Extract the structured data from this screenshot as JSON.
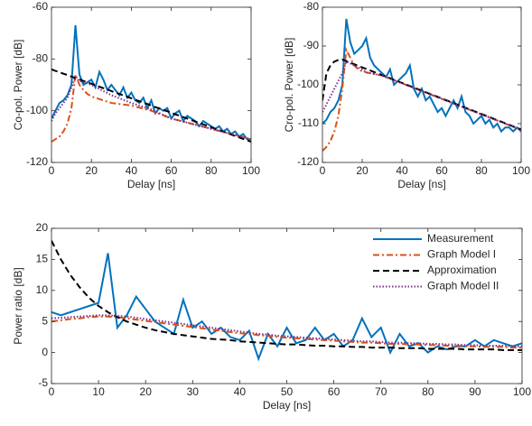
{
  "chart_data": [
    {
      "type": "line",
      "xlabel": "Delay [ns]",
      "ylabel": "Co-pol. Power [dB]",
      "x": [
        0,
        2,
        4,
        6,
        8,
        10,
        12,
        14,
        16,
        18,
        20,
        22,
        24,
        26,
        28,
        30,
        32,
        34,
        36,
        38,
        40,
        42,
        44,
        46,
        48,
        50,
        52,
        54,
        56,
        58,
        60,
        62,
        64,
        66,
        68,
        70,
        72,
        74,
        76,
        78,
        80,
        82,
        84,
        86,
        88,
        90,
        92,
        94,
        96,
        98,
        100
      ],
      "xlim": [
        0,
        100
      ],
      "xticks": [
        0,
        20,
        40,
        60,
        80,
        100
      ],
      "ylim": [
        -120,
        -60
      ],
      "yticks": [
        -60,
        -80,
        -100,
        -120
      ],
      "series": [
        {
          "color": "#0072BD",
          "linestyle": "solid",
          "values": [
            -103,
            -100,
            -97,
            -96,
            -94,
            -90,
            -67,
            -86,
            -90,
            -89,
            -88,
            -91,
            -85,
            -88,
            -92,
            -90,
            -92,
            -94,
            -91,
            -95,
            -93,
            -96,
            -97,
            -95,
            -99,
            -96,
            -101,
            -99,
            -100,
            -99,
            -103,
            -101,
            -100,
            -104,
            -102,
            -103,
            -104,
            -106,
            -104,
            -105,
            -106,
            -107,
            -106,
            -108,
            -107,
            -109,
            -108,
            -110,
            -109,
            -111,
            -111
          ]
        },
        {
          "color": "#D95319",
          "linestyle": "dashdot",
          "values": [
            -112,
            -111,
            -110,
            -108,
            -105,
            -99,
            -86,
            -90,
            -92,
            -93.5,
            -94.5,
            -95,
            -95.5,
            -96,
            -96.5,
            -97,
            -97.2,
            -97.4,
            -97.6,
            -97.8,
            -98,
            -98.4,
            -98.8,
            -99.2,
            -99.6,
            -100,
            -100.6,
            -101.2,
            -101.8,
            -102.4,
            -103,
            -103.4,
            -103.8,
            -104.2,
            -104.6,
            -105,
            -105.4,
            -105.8,
            -106.2,
            -106.6,
            -107,
            -107.4,
            -107.8,
            -108.2,
            -108.6,
            -109,
            -109.4,
            -109.8,
            -110.2,
            -110.6,
            -111
          ]
        },
        {
          "color": "#000000",
          "linestyle": "dashed",
          "values": [
            -84,
            -84.6,
            -85.1,
            -85.7,
            -86.2,
            -86.8,
            -87.4,
            -87.9,
            -88.5,
            -89,
            -89.6,
            -90.2,
            -90.7,
            -91.3,
            -91.8,
            -92.4,
            -93,
            -93.5,
            -94.1,
            -94.6,
            -95.2,
            -95.8,
            -96.3,
            -96.9,
            -97.4,
            -98,
            -98.6,
            -99.1,
            -99.7,
            -100.2,
            -100.8,
            -101.4,
            -101.9,
            -102.5,
            -103,
            -103.6,
            -104.2,
            -104.7,
            -105.3,
            -105.8,
            -106.4,
            -107,
            -107.5,
            -108.1,
            -108.6,
            -109.2,
            -109.8,
            -110.3,
            -110.9,
            -111.4,
            -112
          ]
        },
        {
          "color": "#7E2F8E",
          "linestyle": "dotted",
          "values": [
            -104,
            -101,
            -99,
            -97,
            -95,
            -91,
            -87,
            -88.5,
            -89,
            -89.5,
            -90,
            -90.8,
            -91.6,
            -92.4,
            -93.2,
            -94,
            -94.6,
            -95.2,
            -95.8,
            -96.4,
            -97,
            -97.5,
            -98,
            -98.5,
            -99,
            -99.5,
            -100.2,
            -100.9,
            -101.6,
            -102.3,
            -103,
            -103.4,
            -103.8,
            -104.2,
            -104.6,
            -105,
            -105.4,
            -105.8,
            -106.2,
            -106.6,
            -107,
            -107.4,
            -107.8,
            -108.2,
            -108.6,
            -109,
            -109.4,
            -109.8,
            -110.2,
            -110.6,
            -111
          ]
        }
      ]
    },
    {
      "type": "line",
      "xlabel": "Delay [ns]",
      "ylabel": "Cro-pol. Power [dB]",
      "x": [
        0,
        2,
        4,
        6,
        8,
        10,
        12,
        14,
        16,
        18,
        20,
        22,
        24,
        26,
        28,
        30,
        32,
        34,
        36,
        38,
        40,
        42,
        44,
        46,
        48,
        50,
        52,
        54,
        56,
        58,
        60,
        62,
        64,
        66,
        68,
        70,
        72,
        74,
        76,
        78,
        80,
        82,
        84,
        86,
        88,
        90,
        92,
        94,
        96,
        98,
        100
      ],
      "xlim": [
        0,
        100
      ],
      "xticks": [
        0,
        20,
        40,
        60,
        80,
        100
      ],
      "ylim": [
        -120,
        -80
      ],
      "yticks": [
        -80,
        -90,
        -100,
        -110,
        -120
      ],
      "series": [
        {
          "color": "#0072BD",
          "linestyle": "solid",
          "values": [
            -110,
            -109,
            -107,
            -106,
            -104,
            -100,
            -83,
            -89,
            -92,
            -91,
            -90,
            -88,
            -93,
            -95,
            -96,
            -97,
            -98,
            -96,
            -100,
            -99,
            -98,
            -97,
            -95,
            -101,
            -103,
            -101,
            -104,
            -103,
            -105,
            -107,
            -106,
            -108,
            -106,
            -104,
            -106,
            -103,
            -107,
            -108,
            -110,
            -109,
            -108,
            -110,
            -109,
            -111,
            -110,
            -112,
            -111,
            -111,
            -112,
            -111,
            -112
          ]
        },
        {
          "color": "#D95319",
          "linestyle": "dashdot",
          "values": [
            -117,
            -116,
            -114.5,
            -112,
            -108,
            -101,
            -91,
            -93,
            -95,
            -96,
            -96.5,
            -96.8,
            -97,
            -97.2,
            -97.4,
            -97.6,
            -98,
            -98.4,
            -98.8,
            -99.2,
            -99.6,
            -100,
            -100.4,
            -100.8,
            -101.2,
            -101.6,
            -102,
            -102.4,
            -102.8,
            -103.2,
            -103.6,
            -104,
            -104.4,
            -104.8,
            -105.2,
            -105.6,
            -106,
            -106.4,
            -106.8,
            -107.2,
            -107.6,
            -108,
            -108.4,
            -108.8,
            -109.2,
            -109.6,
            -110,
            -110.4,
            -110.8,
            -111.2,
            -111.6
          ]
        },
        {
          "color": "#000000",
          "linestyle": "dashed",
          "values": [
            -104,
            -97,
            -95,
            -94,
            -93.6,
            -93.5,
            -93.9,
            -94.3,
            -94.7,
            -95.1,
            -95.5,
            -95.9,
            -96.3,
            -96.7,
            -97.1,
            -97.5,
            -97.9,
            -98.3,
            -98.7,
            -99.1,
            -99.5,
            -99.9,
            -100.3,
            -100.7,
            -101.1,
            -101.5,
            -101.9,
            -102.3,
            -102.7,
            -103.1,
            -103.5,
            -103.9,
            -104.3,
            -104.7,
            -105.1,
            -105.5,
            -105.9,
            -106.3,
            -106.7,
            -107.1,
            -107.5,
            -107.9,
            -108.3,
            -108.7,
            -109.1,
            -109.5,
            -109.9,
            -110.3,
            -110.7,
            -111.1,
            -111.5
          ]
        },
        {
          "color": "#7E2F8E",
          "linestyle": "dotted",
          "values": [
            -107,
            -105,
            -103,
            -101,
            -99,
            -97,
            -94,
            -94.5,
            -95,
            -95.5,
            -96,
            -96.8,
            -97,
            -97.2,
            -97.4,
            -97.6,
            -98,
            -98.4,
            -98.8,
            -99.2,
            -99.6,
            -100,
            -100.4,
            -100.8,
            -101.2,
            -101.6,
            -102,
            -102.4,
            -102.8,
            -103.2,
            -103.6,
            -104,
            -104.4,
            -104.8,
            -105.2,
            -105.6,
            -106,
            -106.4,
            -106.8,
            -107.2,
            -107.6,
            -108,
            -108.4,
            -108.8,
            -109.2,
            -109.6,
            -110,
            -110.4,
            -110.8,
            -111.2,
            -111.6
          ]
        }
      ]
    },
    {
      "type": "line",
      "xlabel": "Delay [ns]",
      "ylabel": "Power ratio [dB]",
      "legend": "upper right",
      "x": [
        0,
        2,
        4,
        6,
        8,
        10,
        12,
        14,
        16,
        18,
        20,
        22,
        24,
        26,
        28,
        30,
        32,
        34,
        36,
        38,
        40,
        42,
        44,
        46,
        48,
        50,
        52,
        54,
        56,
        58,
        60,
        62,
        64,
        66,
        68,
        70,
        72,
        74,
        76,
        78,
        80,
        82,
        84,
        86,
        88,
        90,
        92,
        94,
        96,
        98,
        100
      ],
      "xlim": [
        0,
        100
      ],
      "xticks": [
        0,
        10,
        20,
        30,
        40,
        50,
        60,
        70,
        80,
        90,
        100
      ],
      "ylim": [
        -5,
        20
      ],
      "yticks": [
        -5,
        0,
        5,
        10,
        15,
        20
      ],
      "series": [
        {
          "name": "Measurement",
          "color": "#0072BD",
          "linestyle": "solid",
          "values": [
            6.5,
            6,
            6.5,
            7,
            7.5,
            8,
            16,
            4,
            6,
            9,
            7,
            5,
            4,
            3,
            8.5,
            4,
            5,
            3,
            4,
            2.5,
            2,
            3.5,
            -1,
            3,
            1,
            4,
            1.5,
            2,
            4,
            2,
            3,
            1,
            2,
            5.5,
            2.5,
            4,
            0,
            3,
            1,
            1.5,
            0,
            1,
            0.5,
            1,
            1,
            2,
            1,
            2,
            1.5,
            1,
            1.5
          ]
        },
        {
          "name": "Graph Model I",
          "color": "#D95319",
          "linestyle": "dashdot",
          "values": [
            5,
            5.2,
            5.4,
            5.5,
            5.7,
            5.8,
            5.8,
            5.7,
            5.5,
            5.3,
            5.1,
            4.9,
            4.7,
            4.5,
            4.3,
            4.1,
            3.9,
            3.7,
            3.5,
            3.3,
            3.1,
            3,
            2.8,
            2.7,
            2.5,
            2.4,
            2.3,
            2.2,
            2.1,
            2,
            1.9,
            1.8,
            1.7,
            1.6,
            1.6,
            1.5,
            1.4,
            1.4,
            1.3,
            1.3,
            1.2,
            1.2,
            1.1,
            1.1,
            1,
            1,
            0.9,
            0.9,
            0.9,
            0.8,
            0.8
          ]
        },
        {
          "name": "Approximation",
          "color": "#000000",
          "linestyle": "dashed",
          "values": [
            18,
            15,
            12.5,
            10.5,
            8.8,
            7.5,
            6.5,
            5.7,
            5,
            4.5,
            4,
            3.6,
            3.3,
            3,
            2.8,
            2.6,
            2.4,
            2.2,
            2.1,
            2,
            1.8,
            1.7,
            1.6,
            1.5,
            1.4,
            1.3,
            1.3,
            1.2,
            1.1,
            1.1,
            1,
            1,
            0.9,
            0.9,
            0.8,
            0.8,
            0.8,
            0.7,
            0.7,
            0.7,
            0.6,
            0.6,
            0.6,
            0.6,
            0.5,
            0.5,
            0.5,
            0.5,
            0.4,
            0.4,
            0.4
          ]
        },
        {
          "name": "Graph Model II",
          "color": "#7E2F8E",
          "linestyle": "dotted",
          "values": [
            5.5,
            5.6,
            5.7,
            5.8,
            5.9,
            6,
            6,
            5.9,
            5.8,
            5.6,
            5.4,
            5.2,
            5,
            4.8,
            4.6,
            4.4,
            4.2,
            4,
            3.8,
            3.6,
            3.4,
            3.2,
            3,
            2.9,
            2.7,
            2.6,
            2.5,
            2.4,
            2.3,
            2.2,
            2.1,
            2,
            1.9,
            1.8,
            1.8,
            1.7,
            1.6,
            1.6,
            1.5,
            1.5,
            1.4,
            1.4,
            1.3,
            1.3,
            1.2,
            1.2,
            1.1,
            1.1,
            1.1,
            1,
            1
          ]
        }
      ]
    }
  ]
}
